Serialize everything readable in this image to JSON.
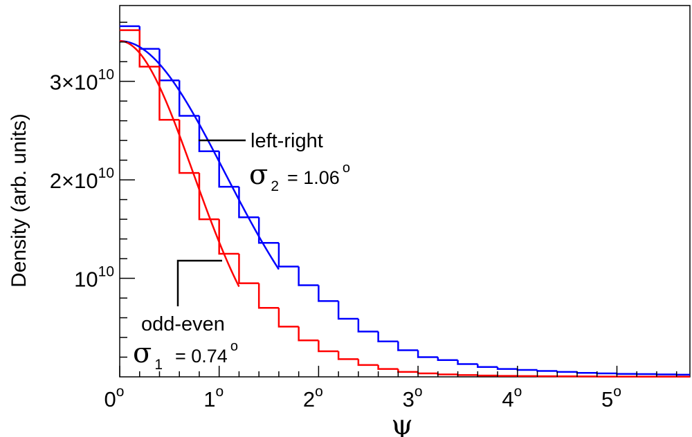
{
  "chart_data": {
    "type": "line",
    "xlabel": "ψ",
    "ylabel": "Density (arb. units)",
    "xlim": [
      0,
      5.85
    ],
    "ylim": [
      0,
      37700000000.0
    ],
    "x_ticks": [
      {
        "value": 0,
        "label": "0",
        "sup": "o"
      },
      {
        "value": 1,
        "label": "1",
        "sup": "o"
      },
      {
        "value": 2,
        "label": "2",
        "sup": "o"
      },
      {
        "value": 3,
        "label": "3",
        "sup": "o"
      },
      {
        "value": 4,
        "label": "4",
        "sup": "o"
      },
      {
        "value": 5,
        "label": "5",
        "sup": "o"
      }
    ],
    "y_ticks": [
      {
        "value": 10000000000.0,
        "mant": "",
        "base": "10",
        "exp": "10"
      },
      {
        "value": 20000000000.0,
        "mant": "2×",
        "base": "10",
        "exp": "10"
      },
      {
        "value": 30000000000.0,
        "mant": "3×",
        "base": "10",
        "exp": "10"
      }
    ],
    "bin_width": 0.2,
    "series": [
      {
        "kind": "histogram",
        "color": "#0000ff",
        "values": [
          35600000000.0,
          33300000000.0,
          30100000000.0,
          26500000000.0,
          22900000000.0,
          19300000000.0,
          16200000000.0,
          13600000000.0,
          11200000000.0,
          9300000000.0,
          7700000000.0,
          5900000000.0,
          4600000000.0,
          3600000000.0,
          2700000000.0,
          2000000000.0,
          1700000000.0,
          1300000000.0,
          1000000000.0,
          800000000.0,
          700000000.0,
          600000000.0,
          500000000.0,
          400000000.0,
          350000000.0,
          300000000.0,
          280000000.0,
          250000000.0,
          220000000.0,
          200000000.0
        ]
      },
      {
        "kind": "histogram",
        "color": "#ff0000",
        "values": [
          35200000000.0,
          31500000000.0,
          26100000000.0,
          20700000000.0,
          16000000000.0,
          12500000000.0,
          9500000000.0,
          7000000000.0,
          5100000000.0,
          3700000000.0,
          2600000000.0,
          1800000000.0,
          1200000000.0,
          800000000.0,
          500000000.0,
          350000000.0,
          250000000.0,
          180000000.0,
          130000000.0,
          100000000.0,
          80000000.0,
          60000000.0,
          50000000.0,
          40000000.0,
          30000000.0,
          30000000.0,
          20000000.0,
          20000000.0,
          20000000.0,
          20000000.0
        ]
      },
      {
        "kind": "gaussian_fit",
        "color": "#0000ff",
        "amplitude": 34100000000.0,
        "sigma": 1.06,
        "x_range": [
          0,
          1.6
        ]
      },
      {
        "kind": "gaussian_fit",
        "color": "#ff0000",
        "amplitude": 34100000000.0,
        "sigma": 0.74,
        "x_range": [
          0,
          1.2
        ]
      }
    ],
    "annotations": [
      {
        "id": "left-right",
        "label": "left-right",
        "sigma_symbol": "σ",
        "sigma_sub": "2",
        "sigma_value": "= 1.06",
        "sup": "o"
      },
      {
        "id": "odd-even",
        "label": "odd-even",
        "sigma_symbol": "σ",
        "sigma_sub": "1",
        "sigma_value": "= 0.74",
        "sup": "o"
      }
    ]
  }
}
